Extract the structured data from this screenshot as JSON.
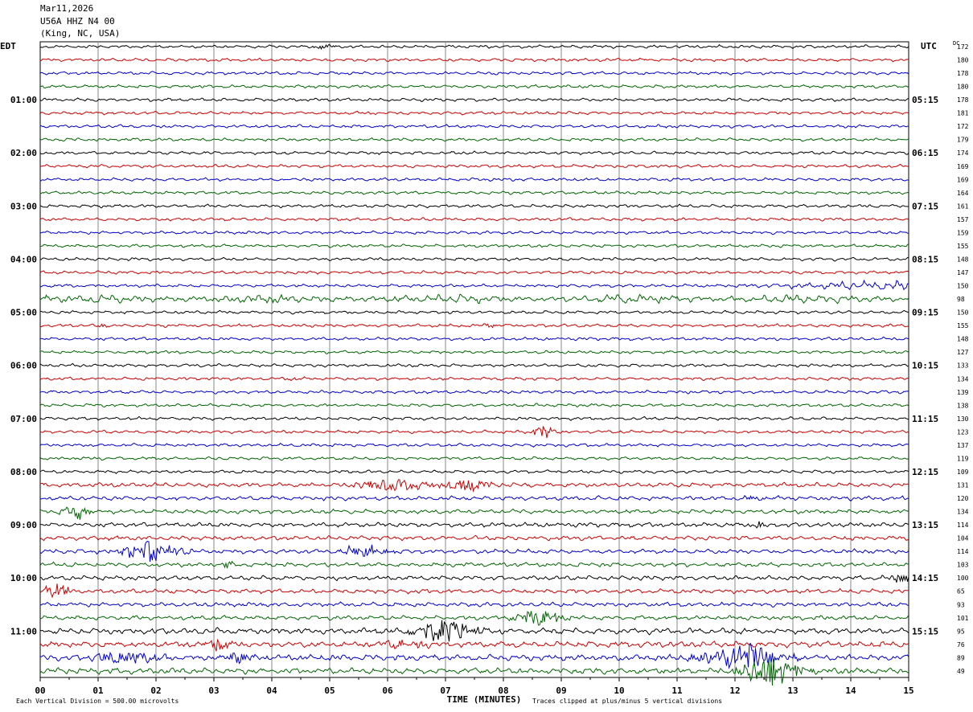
{
  "header": {
    "date": "Mar11,2026",
    "station": "U56A HHZ N4 00",
    "location": "(King, NC, USA)"
  },
  "chart_data": {
    "type": "line",
    "left_timezone": "EDT",
    "right_timezone": "UTC",
    "right_column_label": "DC",
    "xlabel": "TIME (MINUTES)",
    "xlim": [
      0,
      15
    ],
    "x_ticks": [
      "00",
      "01",
      "02",
      "03",
      "04",
      "05",
      "06",
      "07",
      "08",
      "09",
      "10",
      "11",
      "12",
      "13",
      "14",
      "15"
    ],
    "trace_interval_minutes": 15,
    "left_hour_labels": [
      "01:00",
      "02:00",
      "03:00",
      "04:00",
      "05:00",
      "06:00",
      "07:00",
      "08:00",
      "09:00",
      "10:00",
      "11:00"
    ],
    "right_hour_labels": [
      "05:15",
      "06:15",
      "07:15",
      "08:15",
      "09:15",
      "10:15",
      "11:15",
      "12:15",
      "13:15",
      "14:15",
      "15:15"
    ],
    "trace_colors": [
      "#000000",
      "#cc0000",
      "#0000cc",
      "#006600"
    ],
    "dc_offsets": [
      172,
      180,
      178,
      180,
      178,
      181,
      172,
      179,
      174,
      169,
      169,
      164,
      161,
      157,
      159,
      155,
      148,
      147,
      150,
      98,
      150,
      155,
      148,
      127,
      133,
      134,
      139,
      138,
      130,
      123,
      137,
      119,
      109,
      131,
      120,
      134,
      114,
      104,
      114,
      103,
      100,
      65,
      93,
      101,
      95,
      76,
      89,
      49
    ],
    "events": [
      {
        "trace": 0,
        "minute": 4.9,
        "amp": 0.8,
        "dur": 0.3
      },
      {
        "trace": 21,
        "minute": 1.1,
        "amp": 0.6,
        "dur": 0.2
      },
      {
        "trace": 21,
        "minute": 7.7,
        "amp": 1.0,
        "dur": 0.25
      },
      {
        "trace": 25,
        "minute": 4.35,
        "amp": 0.8,
        "dur": 0.15
      },
      {
        "trace": 29,
        "minute": 8.7,
        "amp": 2.2,
        "dur": 0.4
      },
      {
        "trace": 33,
        "minute": 6.0,
        "amp": 1.8,
        "dur": 1.2
      },
      {
        "trace": 33,
        "minute": 7.35,
        "amp": 2.0,
        "dur": 0.8
      },
      {
        "trace": 35,
        "minute": 0.65,
        "amp": 2.6,
        "dur": 0.5
      },
      {
        "trace": 34,
        "minute": 12.45,
        "amp": 1.0,
        "dur": 0.4
      },
      {
        "trace": 36,
        "minute": 12.45,
        "amp": 1.0,
        "dur": 0.3
      },
      {
        "trace": 38,
        "minute": 1.9,
        "amp": 3.2,
        "dur": 0.9
      },
      {
        "trace": 38,
        "minute": 5.6,
        "amp": 2.0,
        "dur": 0.8
      },
      {
        "trace": 39,
        "minute": 3.2,
        "amp": 1.5,
        "dur": 0.3
      },
      {
        "trace": 41,
        "minute": 0.25,
        "amp": 3.0,
        "dur": 0.4
      },
      {
        "trace": 40,
        "minute": 14.8,
        "amp": 1.2,
        "dur": 0.5
      },
      {
        "trace": 43,
        "minute": 8.6,
        "amp": 3.0,
        "dur": 0.7
      },
      {
        "trace": 44,
        "minute": 6.95,
        "amp": 4.0,
        "dur": 0.9
      },
      {
        "trace": 45,
        "minute": 3.1,
        "amp": 2.0,
        "dur": 0.4
      },
      {
        "trace": 45,
        "minute": 6.3,
        "amp": 1.5,
        "dur": 0.7
      },
      {
        "trace": 46,
        "minute": 1.5,
        "amp": 2.2,
        "dur": 1.0
      },
      {
        "trace": 46,
        "minute": 3.4,
        "amp": 1.8,
        "dur": 0.5
      },
      {
        "trace": 46,
        "minute": 12.1,
        "amp": 5.0,
        "dur": 1.2
      },
      {
        "trace": 47,
        "minute": 12.6,
        "amp": 5.0,
        "dur": 1.0
      }
    ]
  },
  "footer": {
    "scale_note": "Each Vertical Division =  500.00 microvolts",
    "clip_note": "Traces clipped at plus/minus 5 vertical divisions"
  }
}
